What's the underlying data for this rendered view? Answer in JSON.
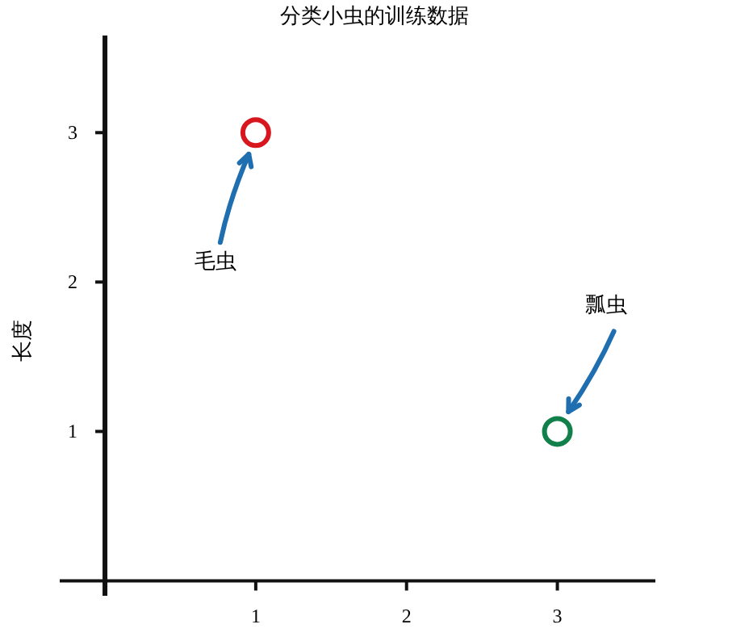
{
  "chart_data": {
    "type": "scatter",
    "title": "分类小虫的训练数据",
    "ylabel": "长度",
    "x": [
      1,
      3
    ],
    "values": [
      3,
      1
    ],
    "colors": [
      "#d8161e",
      "#12804a"
    ],
    "marker": "circle",
    "xlim": [
      -0.3,
      3.65
    ],
    "ylim": [
      -0.1,
      3.65
    ],
    "xticks": [
      1,
      2,
      3
    ],
    "yticks": [
      1,
      2,
      3
    ],
    "grid": false,
    "annotations": [
      "毛虫",
      "瓢虫"
    ]
  }
}
